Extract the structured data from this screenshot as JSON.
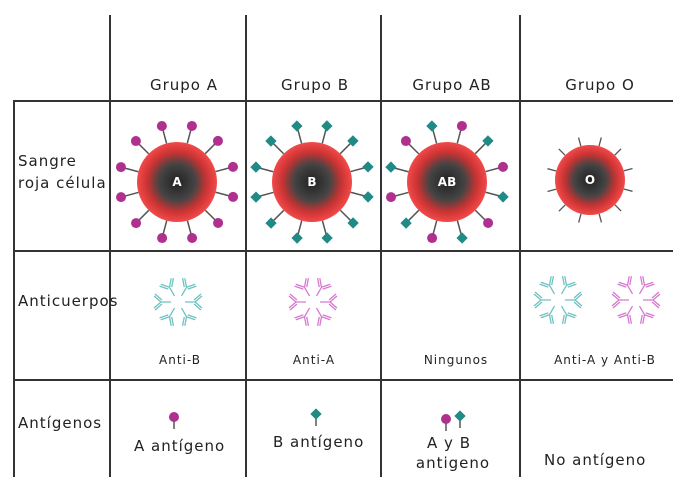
{
  "header": {
    "columns": [
      "Grupo A",
      "Grupo B",
      "Grupo AB",
      "Grupo O"
    ]
  },
  "rows": {
    "red_cell": {
      "label_lines": [
        "Sangre",
        "roja célula"
      ],
      "cells": [
        "A",
        "B",
        "AB",
        "O"
      ]
    },
    "antibodies": {
      "label": "Anticuerpos",
      "cells": [
        "Anti-B",
        "Anti-A",
        "Ningunos",
        "Anti-A y Anti-B"
      ]
    },
    "antigens": {
      "label": "Antígenos",
      "cells": [
        [
          "A antígeno"
        ],
        [
          "B antígeno"
        ],
        [
          "A y B",
          "antigeno"
        ],
        [
          "No antígeno"
        ]
      ]
    }
  }
}
